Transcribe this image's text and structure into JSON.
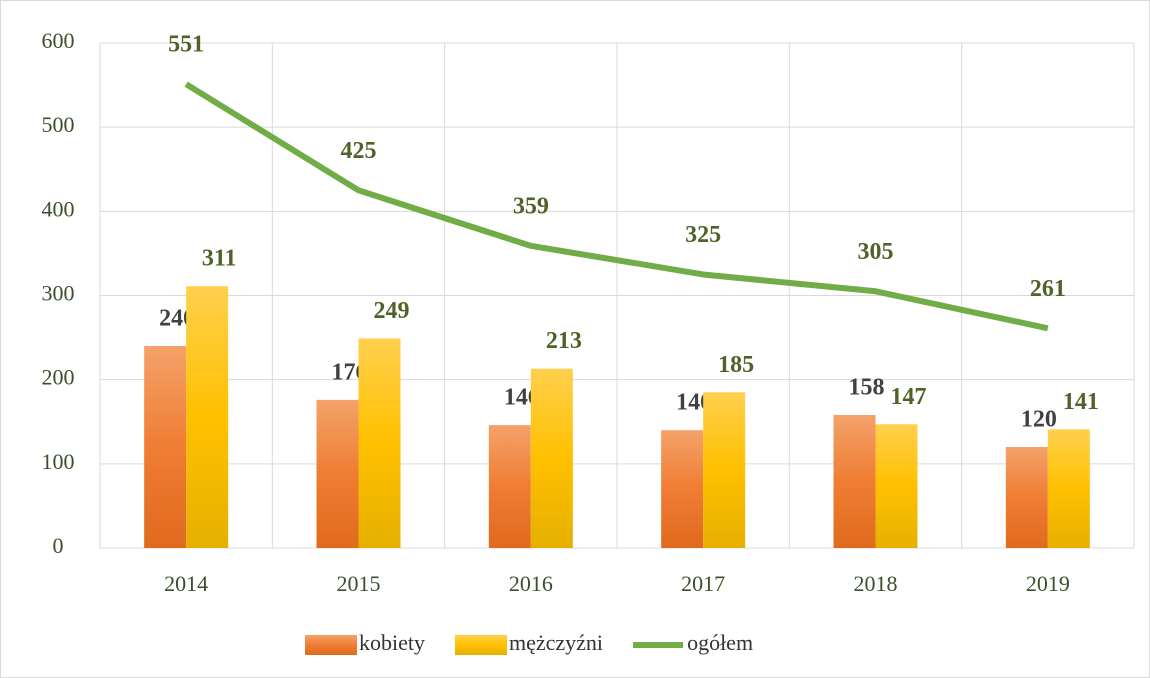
{
  "chart_data": {
    "type": "bar",
    "categories": [
      "2014",
      "2015",
      "2016",
      "2017",
      "2018",
      "2019"
    ],
    "series": [
      {
        "name": "kobiety",
        "type": "bar",
        "color": "#ef7d33",
        "values": [
          240,
          176,
          146,
          140,
          158,
          120
        ]
      },
      {
        "name": "mężczyźni",
        "type": "bar",
        "color": "#ffc000",
        "values": [
          311,
          249,
          213,
          185,
          147,
          141
        ]
      },
      {
        "name": "ogółem",
        "type": "line",
        "color": "#70ad47",
        "values": [
          551,
          425,
          359,
          325,
          305,
          261
        ]
      }
    ],
    "ylim": [
      0,
      600
    ],
    "yticks": [
      0,
      100,
      200,
      300,
      400,
      500,
      600
    ],
    "grid": true,
    "legend": "bottom"
  }
}
